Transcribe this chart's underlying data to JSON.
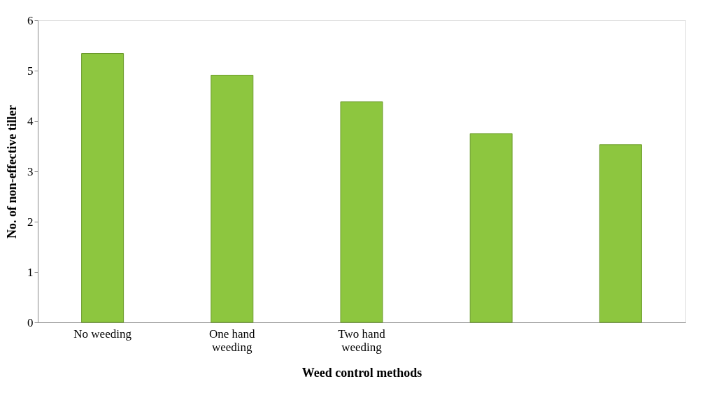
{
  "chart_data": {
    "type": "bar",
    "xlabel": "Weed control methods",
    "ylabel": "No. of non-effective tiller",
    "categories": [
      "No weeding",
      "One hand weeding",
      "Two hand weeding",
      null,
      null
    ],
    "values": [
      5.34,
      4.91,
      4.38,
      3.75,
      3.53
    ],
    "color": "#8dc63f",
    "ylim": [
      0,
      6
    ],
    "yticks": [
      0,
      1,
      2,
      3,
      4,
      5,
      6
    ],
    "grid": false
  }
}
